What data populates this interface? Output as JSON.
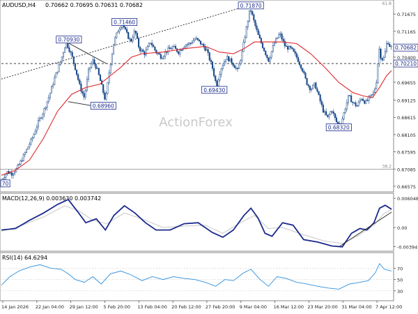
{
  "header": {
    "symbol": "AUDUSD,H4",
    "ohlc": "0.70662 0.70695 0.70631 0.70682",
    "top_right_label": "61.8"
  },
  "watermark": "ActionForex",
  "colors": {
    "candle": "#1a4a8a",
    "ema": "#e0262b",
    "macd": "#1a2a8c",
    "signal": "#c8c8c8",
    "rsi": "#2e8fdc",
    "price_label_bg": "#ffffff",
    "price_label_fg": "#1a2a8c"
  },
  "chart_data": [
    {
      "type": "candlestick",
      "panel": "price",
      "ylim": [
        0.6645,
        0.7205
      ],
      "y_ticks": [
        "0.71675",
        "0.71165",
        "0.70400",
        "0.69655",
        "0.69125",
        "0.68615",
        "0.68105",
        "0.67595",
        "0.67085",
        "0.66575"
      ],
      "y_tick_values": [
        0.71675,
        0.71165,
        0.704,
        0.69655,
        0.69125,
        0.68615,
        0.68105,
        0.67595,
        0.67085,
        0.66575
      ],
      "x_labels": [
        "14 Jan 2026",
        "22 Jan 04:00",
        "29 Jan 12:00",
        "5 Feb 20:00",
        "13 Feb 04:00",
        "20 Feb 12:00",
        "27 Feb 20:00",
        "9 Mar 04:00",
        "16 Mar 12:00",
        "23 Mar 20:00",
        "31 Mar 04:00",
        "7 Apr 12:00"
      ],
      "price_path": [
        [
          0,
          0.6675
        ],
        [
          8,
          0.67
        ],
        [
          15,
          0.6695
        ],
        [
          22,
          0.671
        ],
        [
          30,
          0.674
        ],
        [
          38,
          0.6775
        ],
        [
          45,
          0.6805
        ],
        [
          52,
          0.6845
        ],
        [
          60,
          0.688
        ],
        [
          68,
          0.6925
        ],
        [
          76,
          0.698
        ],
        [
          84,
          0.7025
        ],
        [
          92,
          0.7085
        ],
        [
          100,
          0.7045
        ],
        [
          106,
          0.7
        ],
        [
          112,
          0.695
        ],
        [
          118,
          0.692
        ],
        [
          124,
          0.7
        ],
        [
          130,
          0.703
        ],
        [
          136,
          0.7005
        ],
        [
          142,
          0.696
        ],
        [
          148,
          0.691
        ],
        [
          154,
          0.7005
        ],
        [
          160,
          0.7085
        ],
        [
          166,
          0.712
        ],
        [
          172,
          0.714
        ],
        [
          178,
          0.711
        ],
        [
          184,
          0.7085
        ],
        [
          190,
          0.712
        ],
        [
          196,
          0.7065
        ],
        [
          204,
          0.705
        ],
        [
          212,
          0.7085
        ],
        [
          220,
          0.7055
        ],
        [
          228,
          0.704
        ],
        [
          236,
          0.706
        ],
        [
          244,
          0.707
        ],
        [
          252,
          0.7055
        ],
        [
          260,
          0.7075
        ],
        [
          268,
          0.708
        ],
        [
          276,
          0.7095
        ],
        [
          284,
          0.708
        ],
        [
          292,
          0.706
        ],
        [
          300,
          0.701
        ],
        [
          306,
          0.6955
        ],
        [
          312,
          0.7005
        ],
        [
          320,
          0.704
        ],
        [
          328,
          0.7025
        ],
        [
          336,
          0.7
        ],
        [
          342,
          0.705
        ],
        [
          348,
          0.712
        ],
        [
          354,
          0.7185
        ],
        [
          360,
          0.714
        ],
        [
          366,
          0.71
        ],
        [
          372,
          0.707
        ],
        [
          380,
          0.703
        ],
        [
          388,
          0.708
        ],
        [
          396,
          0.711
        ],
        [
          404,
          0.707
        ],
        [
          412,
          0.7065
        ],
        [
          420,
          0.704
        ],
        [
          428,
          0.7005
        ],
        [
          434,
          0.6965
        ],
        [
          440,
          0.6945
        ],
        [
          446,
          0.696
        ],
        [
          452,
          0.692
        ],
        [
          458,
          0.688
        ],
        [
          464,
          0.686
        ],
        [
          470,
          0.6885
        ],
        [
          476,
          0.685
        ],
        [
          482,
          0.6835
        ],
        [
          488,
          0.688
        ],
        [
          494,
          0.6925
        ],
        [
          500,
          0.6905
        ],
        [
          506,
          0.6895
        ],
        [
          512,
          0.692
        ],
        [
          518,
          0.6905
        ],
        [
          524,
          0.692
        ],
        [
          530,
          0.6935
        ],
        [
          534,
          0.6975
        ],
        [
          537,
          0.707
        ],
        [
          540,
          0.704
        ],
        [
          543,
          0.703
        ],
        [
          546,
          0.7055
        ],
        [
          549,
          0.709
        ],
        [
          552,
          0.7075
        ],
        [
          555,
          0.7068
        ]
      ],
      "ema_path": [
        [
          0,
          0.669
        ],
        [
          20,
          0.6705
        ],
        [
          40,
          0.6735
        ],
        [
          60,
          0.68
        ],
        [
          80,
          0.688
        ],
        [
          100,
          0.693
        ],
        [
          120,
          0.695
        ],
        [
          140,
          0.696
        ],
        [
          155,
          0.6985
        ],
        [
          170,
          0.701
        ],
        [
          185,
          0.704
        ],
        [
          200,
          0.705
        ],
        [
          230,
          0.7055
        ],
        [
          260,
          0.7065
        ],
        [
          290,
          0.7072
        ],
        [
          310,
          0.7055
        ],
        [
          330,
          0.705
        ],
        [
          345,
          0.7065
        ],
        [
          360,
          0.7085
        ],
        [
          380,
          0.7085
        ],
        [
          400,
          0.7085
        ],
        [
          420,
          0.708
        ],
        [
          440,
          0.705
        ],
        [
          460,
          0.701
        ],
        [
          480,
          0.6965
        ],
        [
          500,
          0.6935
        ],
        [
          515,
          0.6925
        ],
        [
          528,
          0.692
        ],
        [
          538,
          0.695
        ],
        [
          548,
          0.6985
        ],
        [
          555,
          0.7
        ]
      ],
      "trendlines": [
        {
          "from": [
            0,
            0.6975
          ],
          "to": [
            355,
            0.7195
          ],
          "style": "dotted"
        },
        {
          "from": [
            0,
            0.7021
          ],
          "to": [
            555,
            0.7021
          ],
          "style": "dashed"
        },
        {
          "from": [
            95,
            0.7082
          ],
          "to": [
            150,
            0.702
          ],
          "style": "solid"
        },
        {
          "from": [
            95,
            0.6908
          ],
          "to": [
            160,
            0.6885
          ],
          "style": "solid"
        }
      ],
      "horizontal_levels": [
        {
          "label": "38.2",
          "price": 0.6708
        }
      ],
      "annotations": [
        {
          "text": "0.71870",
          "price": 0.7193,
          "t": 355
        },
        {
          "text": "0.71460",
          "price": 0.7144,
          "t": 175
        },
        {
          "text": "0.70930",
          "price": 0.7092,
          "t": 96
        },
        {
          "text": "0.69430",
          "price": 0.6943,
          "t": 303
        },
        {
          "text": "0.68960",
          "price": 0.6896,
          "t": 145
        },
        {
          "text": "0.68320",
          "price": 0.6832,
          "t": 480
        },
        {
          "text": "70",
          "price": 0.6666,
          "t": 0
        }
      ],
      "last_price": {
        "value": "0.70682",
        "price": 0.70682
      },
      "pivot_label": {
        "value": "0.70210",
        "price": 0.7021
      }
    },
    {
      "type": "line",
      "panel": "macd",
      "title": "MACD(12,26,9) 0.003630 0.003742",
      "ylim": [
        -0.0046,
        0.0068
      ],
      "y_ticks": [
        "0.006048",
        "0.00",
        "-0.00394"
      ],
      "y_tick_values": [
        0.006048,
        0.0,
        -0.00394
      ],
      "macd_path": [
        [
          0,
          -0.0005
        ],
        [
          20,
          -0.0002
        ],
        [
          40,
          0.0015
        ],
        [
          60,
          0.003
        ],
        [
          80,
          0.0048
        ],
        [
          95,
          0.0058
        ],
        [
          110,
          0.003
        ],
        [
          120,
          0.001
        ],
        [
          135,
          0.0018
        ],
        [
          148,
          -0.0005
        ],
        [
          160,
          0.0025
        ],
        [
          175,
          0.0045
        ],
        [
          190,
          0.003
        ],
        [
          205,
          0.001
        ],
        [
          220,
          -0.0005
        ],
        [
          240,
          -0.0005
        ],
        [
          260,
          0.0008
        ],
        [
          280,
          0.001
        ],
        [
          300,
          -0.001
        ],
        [
          315,
          -0.002
        ],
        [
          330,
          -0.0005
        ],
        [
          345,
          0.0025
        ],
        [
          355,
          0.004
        ],
        [
          365,
          0.002
        ],
        [
          375,
          -0.0012
        ],
        [
          385,
          -0.0018
        ],
        [
          400,
          0.001
        ],
        [
          415,
          0.0005
        ],
        [
          430,
          -0.0025
        ],
        [
          450,
          -0.003
        ],
        [
          470,
          -0.0038
        ],
        [
          485,
          -0.004
        ],
        [
          498,
          -0.0012
        ],
        [
          510,
          -0.0002
        ],
        [
          520,
          -0.0005
        ],
        [
          530,
          0.001
        ],
        [
          538,
          0.004
        ],
        [
          546,
          0.0046
        ],
        [
          555,
          0.0038
        ]
      ],
      "signal_path": [
        [
          0,
          -0.0008
        ],
        [
          30,
          0.0005
        ],
        [
          60,
          0.0022
        ],
        [
          90,
          0.0045
        ],
        [
          110,
          0.0035
        ],
        [
          130,
          0.0015
        ],
        [
          150,
          0.0008
        ],
        [
          175,
          0.003
        ],
        [
          200,
          0.0018
        ],
        [
          230,
          0.0
        ],
        [
          260,
          0.0003
        ],
        [
          290,
          0.0005
        ],
        [
          315,
          -0.0012
        ],
        [
          340,
          0.001
        ],
        [
          360,
          0.0025
        ],
        [
          380,
          -0.0002
        ],
        [
          400,
          0.0
        ],
        [
          430,
          -0.0015
        ],
        [
          460,
          -0.0028
        ],
        [
          485,
          -0.0033
        ],
        [
          510,
          -0.0015
        ],
        [
          530,
          0.0005
        ],
        [
          545,
          0.003
        ],
        [
          555,
          0.0037
        ]
      ],
      "trendline": {
        "from": [
          480,
          -0.004
        ],
        "to": [
          555,
          0.0032
        ]
      }
    },
    {
      "type": "line",
      "panel": "rsi",
      "title": "RSI(14) 64.6294",
      "ylim": [
        15,
        95
      ],
      "y_ticks": [
        "70",
        "50",
        "30"
      ],
      "y_tick_values": [
        70,
        50,
        30
      ],
      "rsi_path": [
        [
          0,
          40
        ],
        [
          12,
          55
        ],
        [
          25,
          65
        ],
        [
          40,
          72
        ],
        [
          55,
          76
        ],
        [
          70,
          70
        ],
        [
          85,
          68
        ],
        [
          95,
          60
        ],
        [
          105,
          50
        ],
        [
          118,
          45
        ],
        [
          130,
          55
        ],
        [
          142,
          42
        ],
        [
          155,
          60
        ],
        [
          170,
          65
        ],
        [
          185,
          58
        ],
        [
          200,
          48
        ],
        [
          215,
          55
        ],
        [
          230,
          50
        ],
        [
          245,
          55
        ],
        [
          260,
          52
        ],
        [
          275,
          50
        ],
        [
          290,
          45
        ],
        [
          305,
          38
        ],
        [
          318,
          50
        ],
        [
          330,
          48
        ],
        [
          345,
          62
        ],
        [
          355,
          68
        ],
        [
          368,
          50
        ],
        [
          380,
          38
        ],
        [
          392,
          55
        ],
        [
          405,
          52
        ],
        [
          420,
          45
        ],
        [
          435,
          42
        ],
        [
          450,
          38
        ],
        [
          465,
          35
        ],
        [
          480,
          33
        ],
        [
          495,
          42
        ],
        [
          510,
          45
        ],
        [
          522,
          48
        ],
        [
          532,
          62
        ],
        [
          538,
          78
        ],
        [
          545,
          68
        ],
        [
          555,
          65
        ]
      ]
    }
  ]
}
